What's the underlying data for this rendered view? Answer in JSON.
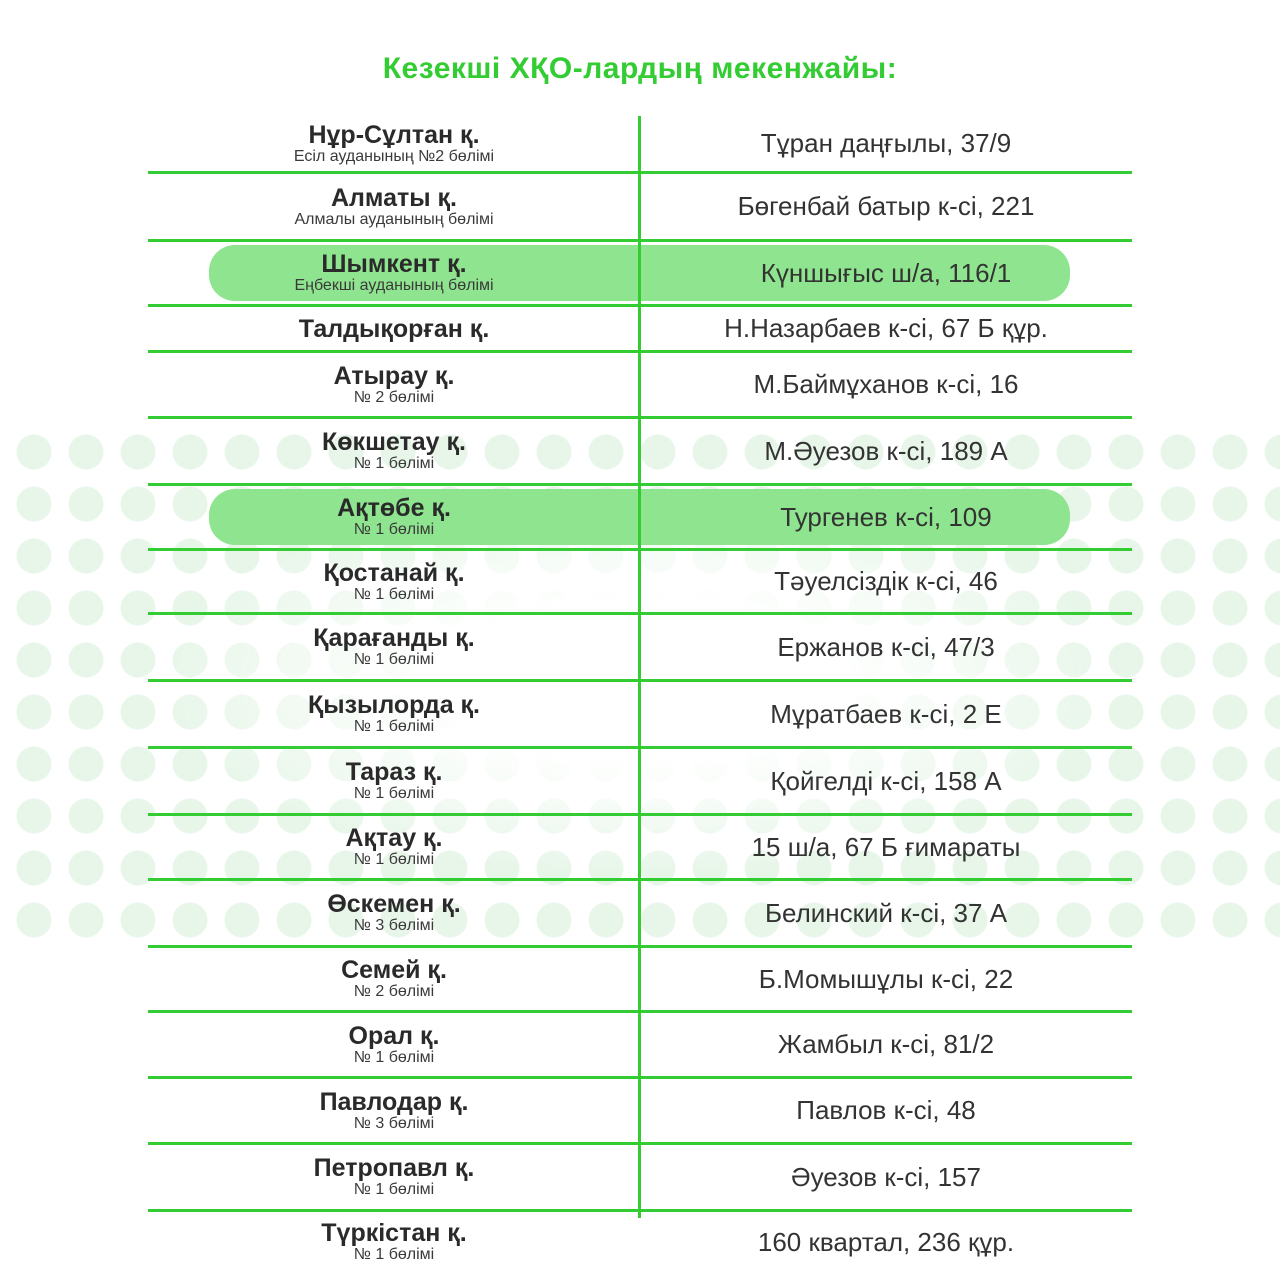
{
  "title": "Кезекші ХҚО-лардың мекенжайы:",
  "colors": {
    "accent": "#33cc33",
    "highlight": "#8fe58f"
  },
  "rows": [
    {
      "city": "Нұр-Сұлтан қ.",
      "dept": "Есіл ауданының №2 бөлімі",
      "address": "Тұран даңғылы, 37/9",
      "highlight": false
    },
    {
      "city": "Алматы қ.",
      "dept": "Алмалы ауданының бөлімі",
      "address": "Бөгенбай батыр к-сі, 221",
      "highlight": false
    },
    {
      "city": "Шымкент қ.",
      "dept": "Еңбекші ауданының бөлімі",
      "address": "Күншығыс ш/а, 116/1",
      "highlight": true
    },
    {
      "city": "Талдықорған қ.",
      "dept": "",
      "address": "Н.Назарбаев к-сі, 67 Б құр.",
      "highlight": false
    },
    {
      "city": "Атырау қ.",
      "dept": "№ 2 бөлімі",
      "address": "М.Баймұханов к-сі, 16",
      "highlight": false
    },
    {
      "city": "Көкшетау қ.",
      "dept": "№ 1 бөлімі",
      "address": "М.Әуезов к-сі, 189 А",
      "highlight": false
    },
    {
      "city": "Ақтөбе қ.",
      "dept": "№ 1 бөлімі",
      "address": "Тургенев к-сі, 109",
      "highlight": true
    },
    {
      "city": "Қостанай қ.",
      "dept": "№ 1 бөлімі",
      "address": "Тәуелсіздік к-сі, 46",
      "highlight": false
    },
    {
      "city": "Қарағанды қ.",
      "dept": "№ 1 бөлімі",
      "address": "Ержанов к-сі, 47/3",
      "highlight": false
    },
    {
      "city": "Қызылорда қ.",
      "dept": "№ 1 бөлімі",
      "address": "Мұратбаев к-сі, 2 Е",
      "highlight": false
    },
    {
      "city": "Тараз қ.",
      "dept": "№ 1 бөлімі",
      "address": "Қойгелді к-сі, 158 А",
      "highlight": false
    },
    {
      "city": "Ақтау қ.",
      "dept": "№ 1 бөлімі",
      "address": "15 ш/а, 67 Б ғимараты",
      "highlight": false
    },
    {
      "city": "Өскемен қ.",
      "dept": "№ 3 бөлімі",
      "address": "Белинский к-сі, 37 А",
      "highlight": false
    },
    {
      "city": "Семей қ.",
      "dept": "№ 2 бөлімі",
      "address": "Б.Момышұлы к-сі, 22",
      "highlight": false
    },
    {
      "city": "Орал қ.",
      "dept": "№ 1 бөлімі",
      "address": "Жамбыл к-сі, 81/2",
      "highlight": false
    },
    {
      "city": "Павлодар қ.",
      "dept": "№ 3 бөлімі",
      "address": "Павлов к-сі, 48",
      "highlight": false
    },
    {
      "city": "Петропавл қ.",
      "dept": "№ 1 бөлімі",
      "address": "Әуезов к-сі, 157",
      "highlight": false
    },
    {
      "city": "Түркістан қ.",
      "dept": "№ 1 бөлімі",
      "address": "160 квартал, 236 құр.",
      "highlight": false
    }
  ]
}
